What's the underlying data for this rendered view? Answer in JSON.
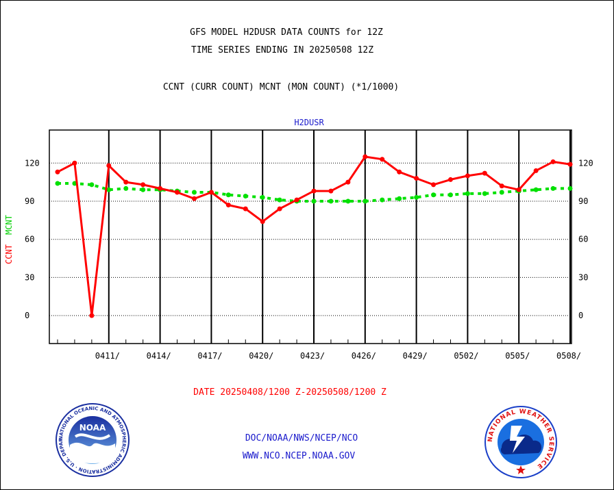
{
  "titles": {
    "line1": "GFS MODEL H2DUSR DATA COUNTS for 12Z",
    "line2": "TIME SERIES ENDING IN 20250508 12Z",
    "line3": "CCNT (CURR COUNT) MCNT (MON COUNT) (*1/1000)"
  },
  "panel_label": "H2DUSR",
  "ylabel_ccnt": "CCNT",
  "ylabel_mcnt": "MCNT",
  "date_range": "DATE 20250408/1200 Z-20250508/1200 Z",
  "footer": {
    "line1": "DOC/NOAA/NWS/NCEP/NCO",
    "line2": "WWW.NCO.NCEP.NOAA.GOV"
  },
  "logos": {
    "noaa_text": "NOAA",
    "noaa_ring": "NATIONAL OCEANIC AND ATMOSPHERIC ADMINISTRATION · U.S. DEPARTMENT OF COMMERCE",
    "nws_ring": "NATIONAL WEATHER SERVICE"
  },
  "colors": {
    "ccnt": "#ff0000",
    "mcnt": "#00e000",
    "text_blue": "#1a1acc",
    "axis": "#000000"
  },
  "chart_data": {
    "type": "line",
    "x": [
      "0408",
      "0409",
      "0410",
      "0411",
      "0412",
      "0413",
      "0414",
      "0415",
      "0416",
      "0417",
      "0418",
      "0419",
      "0420",
      "0421",
      "0422",
      "0423",
      "0424",
      "0425",
      "0426",
      "0427",
      "0428",
      "0429",
      "0430",
      "0501",
      "0502",
      "0503",
      "0504",
      "0505",
      "0506",
      "0507",
      "0508"
    ],
    "x_tick_labels": [
      "0411/",
      "0414/",
      "0417/",
      "0420/",
      "0423/",
      "0426/",
      "0429/",
      "0502/",
      "0505/",
      "0508/"
    ],
    "y_ticks": [
      0,
      30,
      60,
      90,
      120
    ],
    "ylim": [
      -22,
      146
    ],
    "series": [
      {
        "name": "CCNT",
        "values": [
          113,
          120,
          0,
          118,
          105,
          103,
          100,
          97,
          92,
          97,
          87,
          84,
          74,
          84,
          91,
          98,
          98,
          105,
          125,
          123,
          113,
          108,
          103,
          107,
          110,
          112,
          102,
          99,
          114,
          121,
          119
        ]
      },
      {
        "name": "MCNT",
        "values": [
          104,
          104,
          103,
          99,
          100,
          99,
          99,
          98,
          97,
          97,
          95,
          94,
          93,
          91,
          90,
          90,
          90,
          90,
          90,
          91,
          92,
          93,
          95,
          95,
          96,
          96,
          97,
          98,
          99,
          100,
          100
        ]
      }
    ],
    "grid": true
  }
}
